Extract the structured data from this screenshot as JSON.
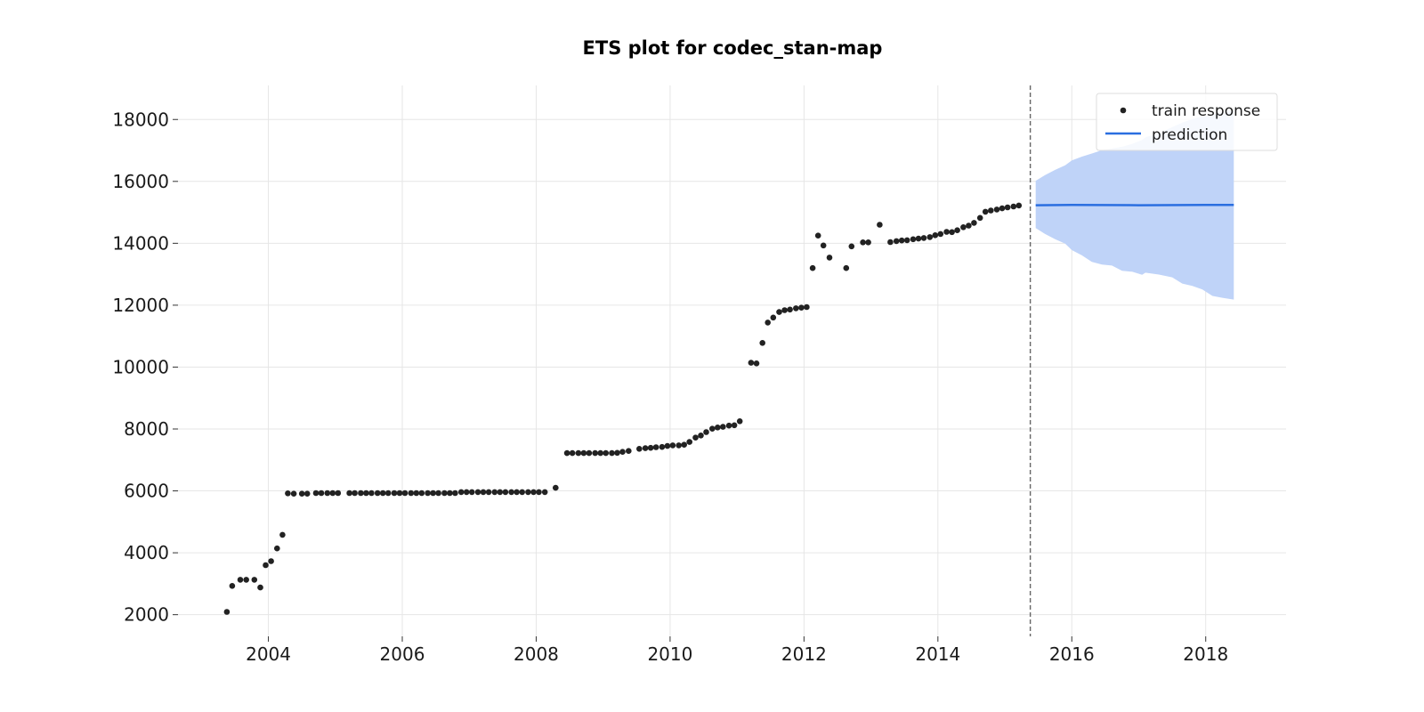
{
  "chart_data": {
    "type": "scatter",
    "title": "ETS plot for codec_stan-map",
    "xlabel": "",
    "ylabel": "",
    "xlim": [
      2002.65,
      2019.2
    ],
    "ylim": [
      1300,
      19100
    ],
    "x_ticks": [
      2004,
      2006,
      2008,
      2010,
      2012,
      2014,
      2016,
      2018
    ],
    "y_ticks": [
      2000,
      4000,
      6000,
      8000,
      10000,
      12000,
      14000,
      16000,
      18000
    ],
    "grid": true,
    "legend_position": "top-right",
    "train_end": 2015.38,
    "colors": {
      "train": "#222222",
      "prediction": "#2a6ee0",
      "band": "#bfd3f8",
      "divider": "#666666",
      "grid": "#e6e6e6"
    },
    "series": [
      {
        "name": "train response",
        "kind": "scatter",
        "points": [
          [
            2003.38,
            2090
          ],
          [
            2003.46,
            2930
          ],
          [
            2003.58,
            3130
          ],
          [
            2003.67,
            3130
          ],
          [
            2003.79,
            3130
          ],
          [
            2003.88,
            2880
          ],
          [
            2003.96,
            3600
          ],
          [
            2004.04,
            3730
          ],
          [
            2004.13,
            4140
          ],
          [
            2004.21,
            4580
          ],
          [
            2004.29,
            5920
          ],
          [
            2004.38,
            5910
          ],
          [
            2004.5,
            5910
          ],
          [
            2004.58,
            5910
          ],
          [
            2004.71,
            5930
          ],
          [
            2004.79,
            5930
          ],
          [
            2004.88,
            5930
          ],
          [
            2004.96,
            5930
          ],
          [
            2005.04,
            5930
          ],
          [
            2005.21,
            5930
          ],
          [
            2005.29,
            5930
          ],
          [
            2005.38,
            5930
          ],
          [
            2005.46,
            5930
          ],
          [
            2005.54,
            5930
          ],
          [
            2005.63,
            5930
          ],
          [
            2005.71,
            5930
          ],
          [
            2005.79,
            5930
          ],
          [
            2005.88,
            5930
          ],
          [
            2005.96,
            5930
          ],
          [
            2006.04,
            5930
          ],
          [
            2006.13,
            5930
          ],
          [
            2006.21,
            5930
          ],
          [
            2006.29,
            5930
          ],
          [
            2006.38,
            5930
          ],
          [
            2006.46,
            5930
          ],
          [
            2006.54,
            5930
          ],
          [
            2006.63,
            5930
          ],
          [
            2006.71,
            5930
          ],
          [
            2006.79,
            5930
          ],
          [
            2006.88,
            5960
          ],
          [
            2006.96,
            5960
          ],
          [
            2007.04,
            5960
          ],
          [
            2007.13,
            5960
          ],
          [
            2007.21,
            5960
          ],
          [
            2007.29,
            5960
          ],
          [
            2007.38,
            5960
          ],
          [
            2007.46,
            5960
          ],
          [
            2007.54,
            5960
          ],
          [
            2007.63,
            5960
          ],
          [
            2007.71,
            5960
          ],
          [
            2007.79,
            5960
          ],
          [
            2007.88,
            5960
          ],
          [
            2007.96,
            5960
          ],
          [
            2008.04,
            5960
          ],
          [
            2008.13,
            5960
          ],
          [
            2008.29,
            6100
          ],
          [
            2008.46,
            7220
          ],
          [
            2008.54,
            7220
          ],
          [
            2008.63,
            7220
          ],
          [
            2008.71,
            7220
          ],
          [
            2008.79,
            7220
          ],
          [
            2008.88,
            7220
          ],
          [
            2008.96,
            7220
          ],
          [
            2009.04,
            7220
          ],
          [
            2009.13,
            7220
          ],
          [
            2009.21,
            7230
          ],
          [
            2009.29,
            7260
          ],
          [
            2009.38,
            7290
          ],
          [
            2009.54,
            7360
          ],
          [
            2009.63,
            7380
          ],
          [
            2009.71,
            7390
          ],
          [
            2009.79,
            7410
          ],
          [
            2009.88,
            7420
          ],
          [
            2009.96,
            7450
          ],
          [
            2010.04,
            7470
          ],
          [
            2010.13,
            7470
          ],
          [
            2010.21,
            7490
          ],
          [
            2010.29,
            7580
          ],
          [
            2010.38,
            7720
          ],
          [
            2010.46,
            7790
          ],
          [
            2010.54,
            7900
          ],
          [
            2010.63,
            8010
          ],
          [
            2010.71,
            8050
          ],
          [
            2010.79,
            8070
          ],
          [
            2010.88,
            8110
          ],
          [
            2010.96,
            8120
          ],
          [
            2011.04,
            8250
          ],
          [
            2011.21,
            10140
          ],
          [
            2011.29,
            10120
          ],
          [
            2011.38,
            10780
          ],
          [
            2011.46,
            11440
          ],
          [
            2011.54,
            11600
          ],
          [
            2011.63,
            11780
          ],
          [
            2011.71,
            11840
          ],
          [
            2011.79,
            11860
          ],
          [
            2011.88,
            11900
          ],
          [
            2011.96,
            11920
          ],
          [
            2012.04,
            11940
          ],
          [
            2012.13,
            13200
          ],
          [
            2012.21,
            14250
          ],
          [
            2012.29,
            13930
          ],
          [
            2012.38,
            13540
          ],
          [
            2012.63,
            13200
          ],
          [
            2012.71,
            13900
          ],
          [
            2012.88,
            14030
          ],
          [
            2012.96,
            14030
          ],
          [
            2013.13,
            14600
          ],
          [
            2013.29,
            14040
          ],
          [
            2013.38,
            14070
          ],
          [
            2013.46,
            14090
          ],
          [
            2013.54,
            14100
          ],
          [
            2013.63,
            14130
          ],
          [
            2013.71,
            14150
          ],
          [
            2013.79,
            14170
          ],
          [
            2013.88,
            14200
          ],
          [
            2013.96,
            14260
          ],
          [
            2014.04,
            14300
          ],
          [
            2014.13,
            14370
          ],
          [
            2014.21,
            14360
          ],
          [
            2014.29,
            14420
          ],
          [
            2014.38,
            14520
          ],
          [
            2014.46,
            14570
          ],
          [
            2014.54,
            14660
          ],
          [
            2014.63,
            14820
          ],
          [
            2014.71,
            15020
          ],
          [
            2014.79,
            15060
          ],
          [
            2014.88,
            15090
          ],
          [
            2014.96,
            15130
          ],
          [
            2015.04,
            15160
          ],
          [
            2015.13,
            15190
          ],
          [
            2015.21,
            15220
          ]
        ]
      },
      {
        "name": "prediction",
        "kind": "line",
        "points": [
          [
            2015.46,
            15230
          ],
          [
            2016.0,
            15240
          ],
          [
            2017.0,
            15230
          ],
          [
            2018.0,
            15240
          ],
          [
            2018.42,
            15240
          ]
        ]
      }
    ],
    "prediction_band": [
      [
        2015.46,
        14490,
        16020
      ],
      [
        2015.6,
        14300,
        16200
      ],
      [
        2015.75,
        14130,
        16370
      ],
      [
        2015.9,
        13990,
        16520
      ],
      [
        2016.0,
        13780,
        16680
      ],
      [
        2016.15,
        13610,
        16800
      ],
      [
        2016.3,
        13400,
        16900
      ],
      [
        2016.45,
        13310,
        17010
      ],
      [
        2016.6,
        13280,
        17060
      ],
      [
        2016.75,
        13110,
        17120
      ],
      [
        2016.9,
        13080,
        17210
      ],
      [
        2017.05,
        12980,
        17340
      ],
      [
        2017.1,
        13050,
        17420
      ],
      [
        2017.3,
        12990,
        17560
      ],
      [
        2017.5,
        12900,
        17750
      ],
      [
        2017.65,
        12700,
        17900
      ],
      [
        2017.8,
        12620,
        18010
      ],
      [
        2017.95,
        12510,
        18100
      ],
      [
        2018.1,
        12300,
        18150
      ],
      [
        2018.25,
        12240,
        18230
      ],
      [
        2018.42,
        12180,
        18290
      ]
    ]
  }
}
